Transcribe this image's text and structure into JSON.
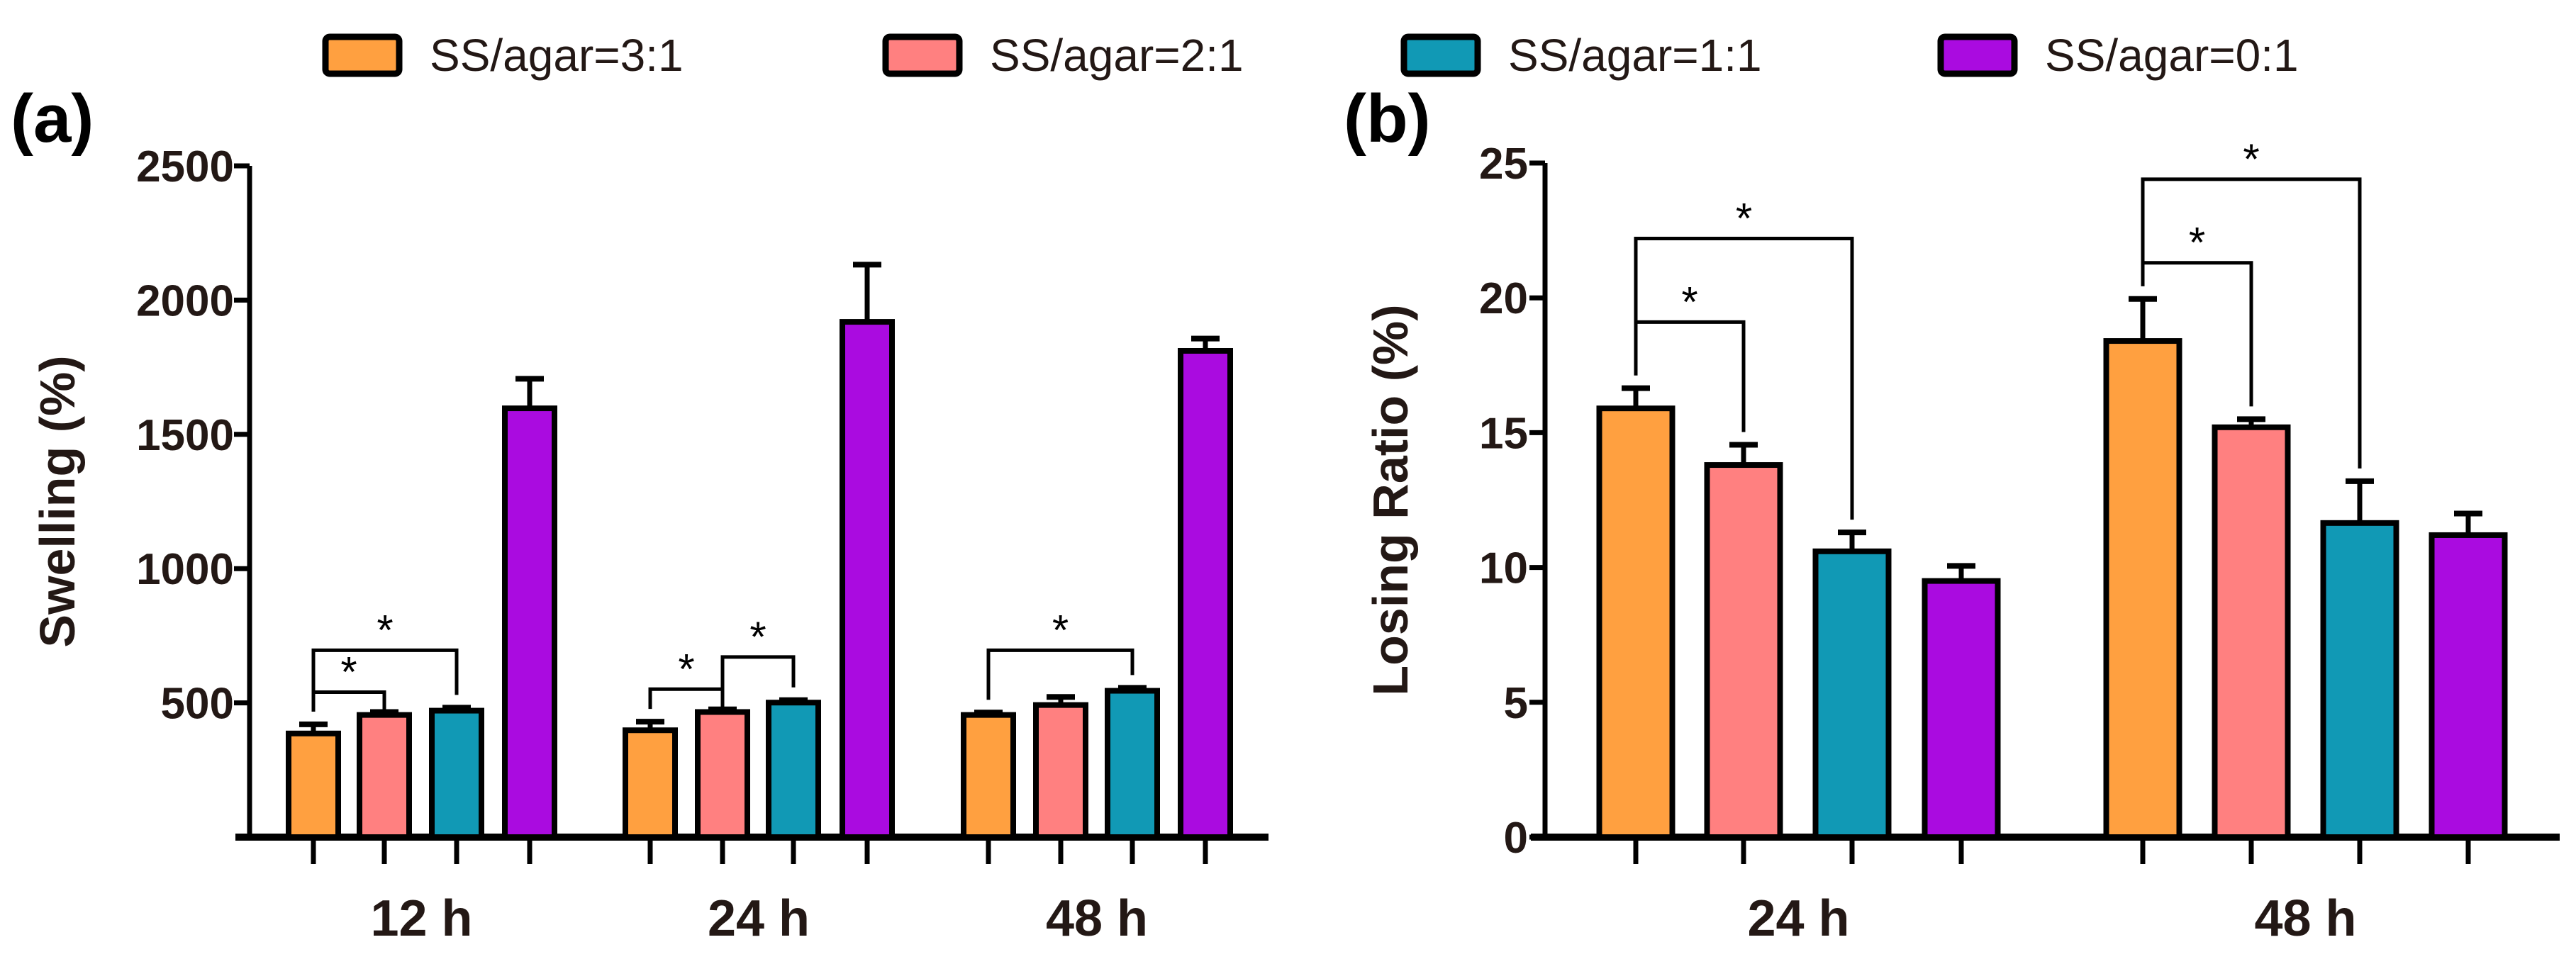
{
  "legend": [
    "SS/agar=3:1",
    "SS/agar=2:1",
    "SS/agar=1:1",
    "SS/agar=0:1"
  ],
  "colors": [
    "#FFA040",
    "#FF8080",
    "#1199B5",
    "#AA0BE0"
  ],
  "chart_data": [
    {
      "type": "bar",
      "panel": "(a)",
      "ylabel": "Swelling (%)",
      "xlabel": "",
      "ylim": [
        0,
        2500
      ],
      "yticks": [
        500,
        1000,
        1500,
        2000,
        2500
      ],
      "categories": [
        "12 h",
        "24 h",
        "48 h"
      ],
      "series": [
        {
          "name": "SS/agar=3:1",
          "values": [
            386,
            398,
            455
          ],
          "error_upper": [
            420,
            430,
            464
          ]
        },
        {
          "name": "SS/agar=2:1",
          "values": [
            455,
            466,
            492
          ],
          "error_upper": [
            466,
            476,
            522
          ]
        },
        {
          "name": "SS/agar=1:1",
          "values": [
            471,
            501,
            545
          ],
          "error_upper": [
            482,
            510,
            556
          ]
        },
        {
          "name": "SS/agar=0:1",
          "values": [
            1597,
            1919,
            1811
          ],
          "error_upper": [
            1707,
            2132,
            1857
          ]
        }
      ],
      "significance": [
        {
          "category": 0,
          "from": 0,
          "to": 1,
          "level": 540,
          "label": "*"
        },
        {
          "category": 0,
          "from": 0,
          "to": 2,
          "level": 696,
          "label": "*"
        },
        {
          "category": 1,
          "from": 0,
          "to": 1,
          "level": 551,
          "label": "*"
        },
        {
          "category": 1,
          "from": 1,
          "to": 2,
          "level": 671,
          "label": "*"
        },
        {
          "category": 2,
          "from": 0,
          "to": 2,
          "level": 696,
          "label": "*"
        }
      ]
    },
    {
      "type": "bar",
      "panel": "(b)",
      "ylabel": "Losing Ratio (%)",
      "xlabel": "",
      "ylim": [
        0,
        25
      ],
      "yticks": [
        0,
        5,
        10,
        15,
        20,
        25
      ],
      "categories": [
        "24 h",
        "48 h"
      ],
      "series": [
        {
          "name": "SS/agar=3:1",
          "values": [
            15.9,
            18.4
          ],
          "error_upper": [
            16.65,
            19.96
          ]
        },
        {
          "name": "SS/agar=2:1",
          "values": [
            13.8,
            15.2
          ],
          "error_upper": [
            14.55,
            15.5
          ]
        },
        {
          "name": "SS/agar=1:1",
          "values": [
            10.6,
            11.65
          ],
          "error_upper": [
            11.3,
            13.2
          ]
        },
        {
          "name": "SS/agar=0:1",
          "values": [
            9.5,
            11.2
          ],
          "error_upper": [
            10.06,
            12.0
          ]
        }
      ],
      "significance": [
        {
          "category": 0,
          "from": 0,
          "to": 1,
          "level": 19.1,
          "label": "*"
        },
        {
          "category": 0,
          "from": 0,
          "to": 2,
          "level": 22.2,
          "label": "*"
        },
        {
          "category": 1,
          "from": 0,
          "to": 1,
          "level": 21.3,
          "label": "*"
        },
        {
          "category": 1,
          "from": 0,
          "to": 2,
          "level": 24.4,
          "label": "*"
        }
      ]
    }
  ]
}
